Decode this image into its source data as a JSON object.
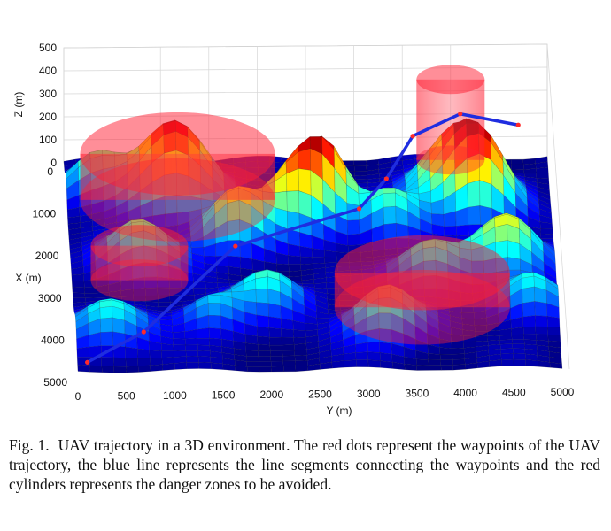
{
  "chart_data": {
    "type": "surface-3d",
    "axes": {
      "z": {
        "label": "Z (m)",
        "ticks": [
          "0",
          "100",
          "200",
          "300",
          "400",
          "500"
        ],
        "range": [
          0,
          500
        ]
      },
      "x": {
        "label": "X (m)",
        "ticks": [
          "0",
          "1000",
          "2000",
          "3000",
          "4000",
          "5000"
        ],
        "range": [
          0,
          5000
        ]
      },
      "y": {
        "label": "Y (m)",
        "ticks": [
          "0",
          "500",
          "1000",
          "1500",
          "2000",
          "2500",
          "3000",
          "3500",
          "4000",
          "4500",
          "5000"
        ],
        "range": [
          0,
          5000
        ]
      }
    },
    "grid": true,
    "colormap": "jet",
    "trajectory": {
      "color": "#1f2de0",
      "waypoint_color": "#ff2a2a",
      "waypoints": [
        {
          "y": 100,
          "x": 4900,
          "z": 30
        },
        {
          "y": 700,
          "x": 4300,
          "z": 50
        },
        {
          "y": 1700,
          "x": 2500,
          "z": 90
        },
        {
          "y": 3000,
          "x": 1800,
          "z": 120
        },
        {
          "y": 3300,
          "x": 1200,
          "z": 140
        },
        {
          "y": 3600,
          "x": 300,
          "z": 160
        },
        {
          "y": 4100,
          "x": 0,
          "z": 200
        },
        {
          "y": 4700,
          "x": 0,
          "z": 150
        }
      ]
    },
    "danger_zones": {
      "color": "#ff1e32",
      "cylinders": [
        {
          "y": 1150,
          "x": 900,
          "r": 1000,
          "h": 200
        },
        {
          "y": 700,
          "x": 2800,
          "r": 500,
          "h": 150
        },
        {
          "y": 3600,
          "x": 3500,
          "r": 900,
          "h": 150
        },
        {
          "y": 4000,
          "x": 0,
          "r": 350,
          "h": 350
        }
      ]
    }
  },
  "caption": {
    "label": "Fig. 1.",
    "text": "UAV trajectory in a 3D environment. The red dots represent the waypoints of the UAV trajectory, the blue line represents the line segments connecting the waypoints and the red cylinders represents the danger zones to be avoided."
  }
}
